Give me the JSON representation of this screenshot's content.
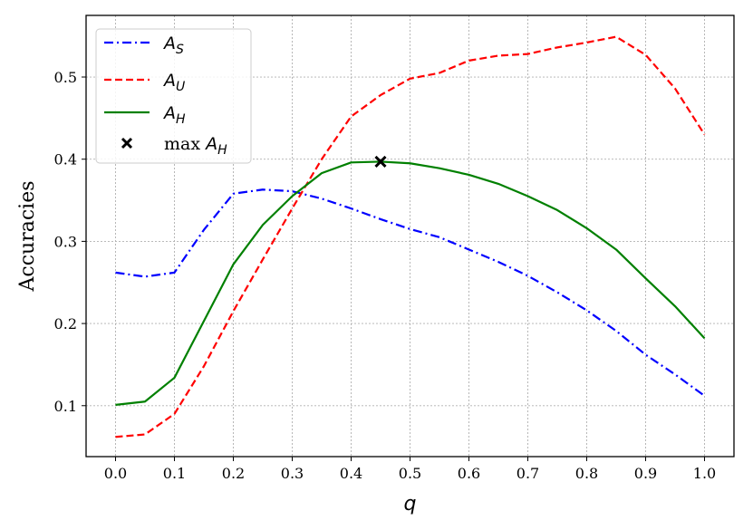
{
  "chart_data": {
    "type": "line",
    "xlabel": "q",
    "ylabel": "Accuracies",
    "xlim": [
      -0.05,
      1.05
    ],
    "ylim": [
      0.038,
      0.575
    ],
    "xticks": [
      "0.0",
      "0.1",
      "0.2",
      "0.3",
      "0.4",
      "0.5",
      "0.6",
      "0.7",
      "0.8",
      "0.9",
      "1.0"
    ],
    "yticks": [
      "0.1",
      "0.2",
      "0.3",
      "0.4",
      "0.5"
    ],
    "grid": true,
    "legend_position": "upper-left",
    "x": [
      0.0,
      0.05,
      0.1,
      0.15,
      0.2,
      0.25,
      0.3,
      0.35,
      0.4,
      0.45,
      0.5,
      0.55,
      0.6,
      0.65,
      0.7,
      0.75,
      0.8,
      0.85,
      0.9,
      0.95,
      1.0
    ],
    "series": [
      {
        "name": "A_S",
        "legend": {
          "main": "A",
          "sub": "S"
        },
        "color": "#0000ff",
        "style": "dashdot",
        "values": [
          0.262,
          0.257,
          0.262,
          0.314,
          0.358,
          0.363,
          0.361,
          0.352,
          0.34,
          0.327,
          0.315,
          0.305,
          0.29,
          0.275,
          0.258,
          0.238,
          0.216,
          0.191,
          0.162,
          0.138,
          0.112
        ]
      },
      {
        "name": "A_U",
        "legend": {
          "main": "A",
          "sub": "U"
        },
        "color": "#ff0000",
        "style": "dashed",
        "values": [
          0.062,
          0.065,
          0.09,
          0.148,
          0.215,
          0.278,
          0.34,
          0.4,
          0.452,
          0.478,
          0.498,
          0.505,
          0.52,
          0.526,
          0.528,
          0.536,
          0.542,
          0.549,
          0.527,
          0.486,
          0.43
        ]
      },
      {
        "name": "A_H",
        "legend": {
          "main": "A",
          "sub": "H"
        },
        "color": "#008000",
        "style": "solid",
        "values": [
          0.101,
          0.105,
          0.134,
          0.203,
          0.272,
          0.32,
          0.355,
          0.383,
          0.396,
          0.397,
          0.395,
          0.389,
          0.381,
          0.37,
          0.355,
          0.338,
          0.316,
          0.29,
          0.255,
          0.221,
          0.182
        ]
      }
    ],
    "marker": {
      "name": "max A_H",
      "legend": {
        "prefix": "max",
        "main": "A",
        "sub": "H"
      },
      "x": 0.45,
      "y": 0.397,
      "symbol": "x",
      "color": "#000000"
    }
  }
}
